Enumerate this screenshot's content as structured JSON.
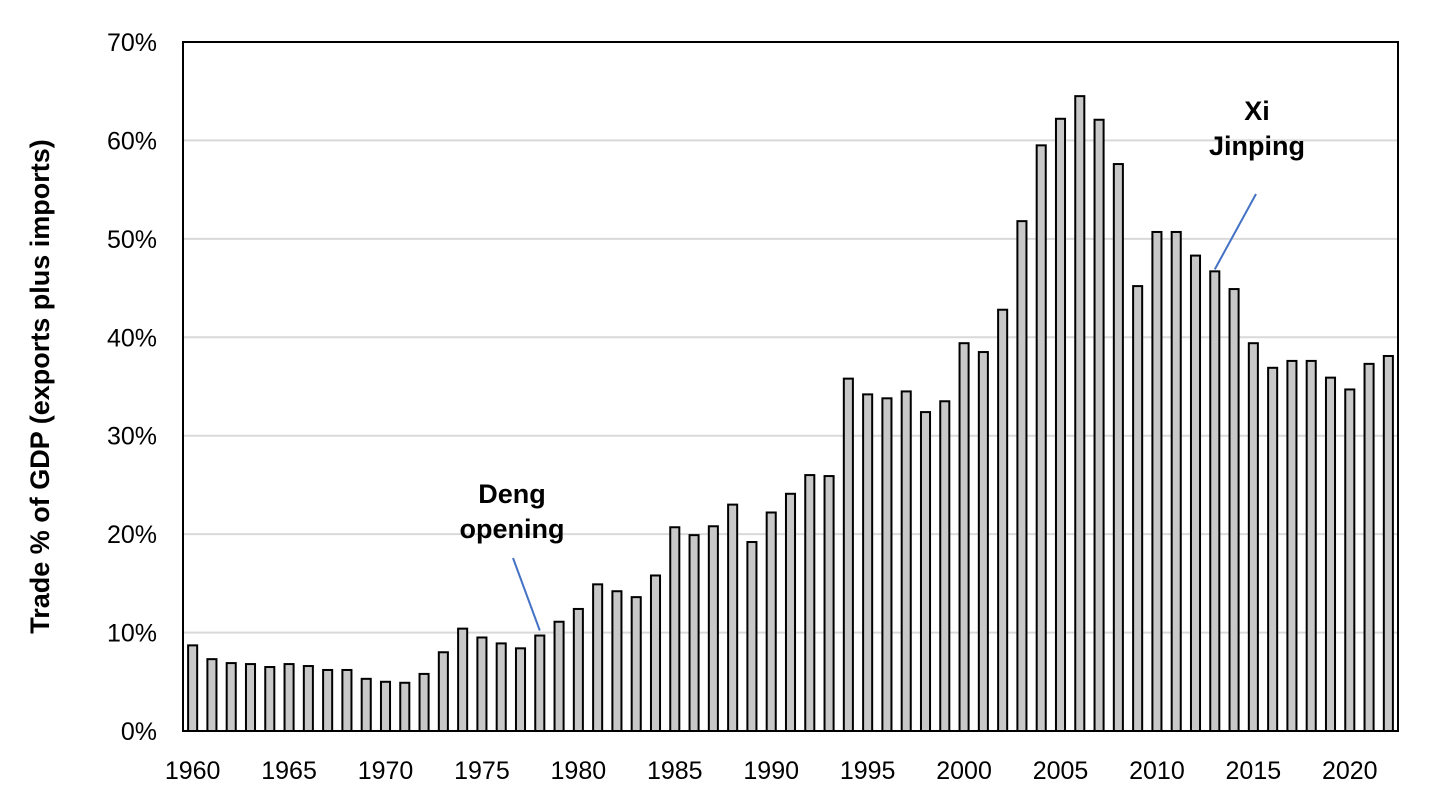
{
  "chart_data": {
    "type": "bar",
    "title": "",
    "xlabel": "",
    "ylabel": "Trade % of GDP (exports plus imports)",
    "ylim": [
      0,
      70
    ],
    "y_ticks": [
      0,
      10,
      20,
      30,
      40,
      50,
      60,
      70
    ],
    "y_tick_suffix": "%",
    "x_tick_labels": [
      "1960",
      "1965",
      "1970",
      "1975",
      "1980",
      "1985",
      "1990",
      "1995",
      "2000",
      "2005",
      "2010",
      "2015",
      "2020"
    ],
    "grid": "horizontal",
    "legend": "none",
    "colors": {
      "bar_fill": "#c8c8c8",
      "bar_stroke": "#000000",
      "grid": "#d9d9d9",
      "annotation_line": "#4472c4"
    },
    "categories": [
      1960,
      1961,
      1962,
      1963,
      1964,
      1965,
      1966,
      1967,
      1968,
      1969,
      1970,
      1971,
      1972,
      1973,
      1974,
      1975,
      1976,
      1977,
      1978,
      1979,
      1980,
      1981,
      1982,
      1983,
      1984,
      1985,
      1986,
      1987,
      1988,
      1989,
      1990,
      1991,
      1992,
      1993,
      1994,
      1995,
      1996,
      1997,
      1998,
      1999,
      2000,
      2001,
      2002,
      2003,
      2004,
      2005,
      2006,
      2007,
      2008,
      2009,
      2010,
      2011,
      2012,
      2013,
      2014,
      2015,
      2016,
      2017,
      2018,
      2019,
      2020,
      2021,
      2022
    ],
    "values": [
      8.7,
      7.3,
      6.9,
      6.8,
      6.5,
      6.8,
      6.6,
      6.2,
      6.2,
      5.3,
      5.0,
      4.9,
      5.8,
      8.0,
      10.4,
      9.5,
      8.9,
      8.4,
      9.7,
      11.1,
      12.4,
      14.9,
      14.2,
      13.6,
      15.8,
      20.7,
      19.9,
      20.8,
      23.0,
      19.2,
      22.2,
      24.1,
      26.0,
      25.9,
      35.8,
      34.2,
      33.8,
      34.5,
      32.4,
      33.5,
      39.4,
      38.5,
      42.8,
      51.8,
      59.5,
      62.2,
      64.5,
      62.1,
      57.6,
      45.2,
      50.7,
      50.7,
      48.3,
      46.7,
      44.9,
      39.4,
      36.9,
      37.6,
      37.6,
      35.9,
      34.7,
      37.3,
      38.1
    ],
    "annotations": [
      {
        "lines": [
          "Deng",
          "opening"
        ],
        "year": 1978
      },
      {
        "lines": [
          "Xi",
          "Jinping"
        ],
        "year": 2013
      }
    ]
  }
}
